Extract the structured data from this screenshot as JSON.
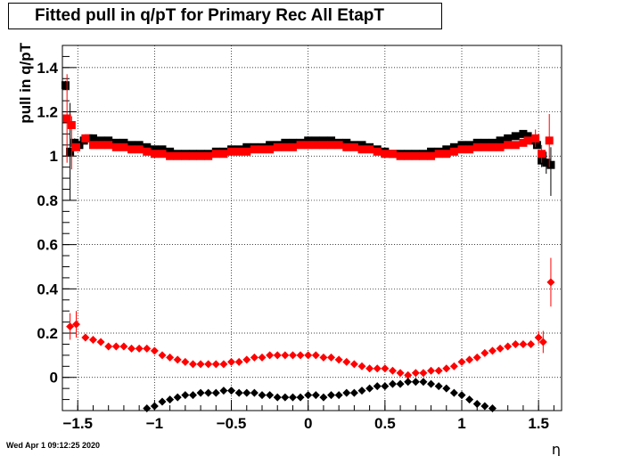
{
  "chart_data": {
    "type": "scatter",
    "title": "Fitted pull in q/pT for Primary Rec All EtapT",
    "xlabel": "η",
    "ylabel": "pull in q/pT",
    "xlim": [
      -1.6,
      1.65
    ],
    "ylim": [
      -0.15,
      1.5
    ],
    "grid": true,
    "x_ticks": [
      "−1.5",
      "−1",
      "−0.5",
      "0",
      "0.5",
      "1",
      "1.5"
    ],
    "y_ticks": [
      "0",
      "0.2",
      "0.4",
      "0.6",
      "0.8",
      "1",
      "1.2",
      "1.4"
    ],
    "x_tick_values": [
      -1.5,
      -1,
      -0.5,
      0,
      0.5,
      1,
      1.5
    ],
    "y_tick_values": [
      0,
      0.2,
      0.4,
      0.6,
      0.8,
      1,
      1.2,
      1.4
    ],
    "colors": {
      "series_a": "#000000",
      "series_b": "#ff0000"
    },
    "series": [
      {
        "marker": "square",
        "color": "#000000",
        "x": [
          -1.58,
          -1.55,
          -1.52,
          -1.49,
          -1.46,
          -1.43,
          -1.4,
          -1.35,
          -1.3,
          -1.25,
          -1.2,
          -1.15,
          -1.1,
          -1.05,
          -1.0,
          -0.95,
          -0.9,
          -0.85,
          -0.8,
          -0.75,
          -0.7,
          -0.65,
          -0.6,
          -0.55,
          -0.5,
          -0.45,
          -0.4,
          -0.35,
          -0.3,
          -0.25,
          -0.2,
          -0.15,
          -0.1,
          -0.05,
          0.0,
          0.05,
          0.1,
          0.15,
          0.2,
          0.25,
          0.3,
          0.35,
          0.4,
          0.45,
          0.5,
          0.55,
          0.6,
          0.65,
          0.7,
          0.75,
          0.8,
          0.85,
          0.9,
          0.95,
          1.0,
          1.05,
          1.1,
          1.15,
          1.2,
          1.25,
          1.3,
          1.35,
          1.4,
          1.43,
          1.46,
          1.49,
          1.52,
          1.55,
          1.58
        ],
        "y": [
          1.32,
          1.02,
          1.06,
          1.05,
          1.07,
          1.08,
          1.08,
          1.07,
          1.07,
          1.06,
          1.06,
          1.05,
          1.05,
          1.04,
          1.03,
          1.03,
          1.02,
          1.01,
          1.01,
          1.01,
          1.01,
          1.01,
          1.02,
          1.02,
          1.03,
          1.03,
          1.04,
          1.04,
          1.04,
          1.05,
          1.05,
          1.06,
          1.06,
          1.06,
          1.07,
          1.07,
          1.07,
          1.07,
          1.06,
          1.06,
          1.05,
          1.05,
          1.04,
          1.03,
          1.02,
          1.01,
          1.01,
          1.01,
          1.01,
          1.01,
          1.02,
          1.02,
          1.03,
          1.04,
          1.05,
          1.05,
          1.06,
          1.06,
          1.06,
          1.07,
          1.08,
          1.09,
          1.1,
          1.09,
          1.07,
          1.05,
          0.98,
          0.97,
          0.96
        ],
        "yerr_low": [
          0.02,
          0.22,
          0.02,
          0,
          0,
          0,
          0,
          0,
          0,
          0,
          0,
          0,
          0,
          0,
          0,
          0,
          0,
          0,
          0,
          0,
          0,
          0,
          0,
          0,
          0,
          0,
          0,
          0,
          0,
          0,
          0,
          0,
          0,
          0,
          0,
          0,
          0,
          0,
          0,
          0,
          0,
          0,
          0,
          0,
          0,
          0,
          0,
          0,
          0,
          0,
          0,
          0,
          0,
          0,
          0,
          0,
          0,
          0,
          0,
          0,
          0,
          0,
          0,
          0,
          0,
          0,
          0.03,
          0.05,
          0.14
        ],
        "yerr_high": [
          0.02,
          0.22,
          0.02,
          0,
          0,
          0,
          0,
          0,
          0,
          0,
          0,
          0,
          0,
          0,
          0,
          0,
          0,
          0,
          0,
          0,
          0,
          0,
          0,
          0,
          0,
          0,
          0,
          0,
          0,
          0,
          0,
          0,
          0,
          0,
          0,
          0,
          0,
          0,
          0,
          0,
          0,
          0,
          0,
          0,
          0,
          0,
          0,
          0,
          0,
          0,
          0,
          0,
          0,
          0,
          0,
          0,
          0,
          0,
          0,
          0,
          0,
          0,
          0,
          0,
          0,
          0,
          0.03,
          0.05,
          0.08
        ]
      },
      {
        "marker": "square",
        "color": "#ff0000",
        "x": [
          -1.57,
          -1.54,
          -1.51,
          -1.45,
          -1.4,
          -1.35,
          -1.3,
          -1.25,
          -1.2,
          -1.15,
          -1.1,
          -1.05,
          -1.0,
          -0.95,
          -0.9,
          -0.85,
          -0.8,
          -0.75,
          -0.7,
          -0.65,
          -0.6,
          -0.55,
          -0.5,
          -0.45,
          -0.4,
          -0.35,
          -0.3,
          -0.25,
          -0.2,
          -0.15,
          -0.1,
          -0.05,
          0.0,
          0.05,
          0.1,
          0.15,
          0.2,
          0.25,
          0.3,
          0.35,
          0.4,
          0.45,
          0.5,
          0.55,
          0.6,
          0.65,
          0.7,
          0.75,
          0.8,
          0.85,
          0.9,
          0.95,
          1.0,
          1.05,
          1.1,
          1.15,
          1.2,
          1.25,
          1.3,
          1.35,
          1.4,
          1.43,
          1.48,
          1.52,
          1.57
        ],
        "y": [
          1.17,
          1.14,
          1.04,
          1.08,
          1.05,
          1.05,
          1.05,
          1.04,
          1.04,
          1.03,
          1.03,
          1.02,
          1.01,
          1.01,
          1.0,
          1.0,
          1.0,
          1.0,
          1.0,
          1.0,
          1.01,
          1.01,
          1.02,
          1.02,
          1.02,
          1.03,
          1.03,
          1.03,
          1.04,
          1.04,
          1.04,
          1.05,
          1.05,
          1.05,
          1.05,
          1.05,
          1.05,
          1.04,
          1.04,
          1.03,
          1.03,
          1.02,
          1.01,
          1.01,
          1.0,
          1.0,
          1.0,
          1.0,
          1.0,
          1.01,
          1.01,
          1.02,
          1.03,
          1.03,
          1.04,
          1.04,
          1.04,
          1.04,
          1.05,
          1.05,
          1.06,
          1.07,
          1.08,
          1.01,
          1.07
        ],
        "yerr_low": [
          0.2,
          0.2,
          0,
          0,
          0,
          0,
          0,
          0,
          0,
          0,
          0,
          0,
          0,
          0,
          0,
          0,
          0,
          0,
          0,
          0,
          0,
          0,
          0,
          0,
          0,
          0,
          0,
          0,
          0,
          0,
          0,
          0,
          0,
          0,
          0,
          0,
          0,
          0,
          0,
          0,
          0,
          0,
          0,
          0,
          0,
          0,
          0,
          0,
          0,
          0,
          0,
          0,
          0,
          0,
          0,
          0,
          0,
          0,
          0,
          0,
          0,
          0,
          0.04,
          0.04,
          0.12
        ],
        "yerr_high": [
          0.2,
          0.04,
          0,
          0,
          0,
          0,
          0,
          0,
          0,
          0,
          0,
          0,
          0,
          0,
          0,
          0,
          0,
          0,
          0,
          0,
          0,
          0,
          0,
          0,
          0,
          0,
          0,
          0,
          0,
          0,
          0,
          0,
          0,
          0,
          0,
          0,
          0,
          0,
          0,
          0,
          0,
          0,
          0,
          0,
          0,
          0,
          0,
          0,
          0,
          0,
          0,
          0,
          0,
          0,
          0,
          0,
          0,
          0,
          0,
          0,
          0,
          0,
          0.04,
          0.04,
          0.12
        ]
      },
      {
        "marker": "diamond",
        "color": "#ff0000",
        "x": [
          -1.55,
          -1.51,
          -1.45,
          -1.4,
          -1.35,
          -1.3,
          -1.25,
          -1.2,
          -1.15,
          -1.1,
          -1.05,
          -1.0,
          -0.95,
          -0.9,
          -0.85,
          -0.8,
          -0.75,
          -0.7,
          -0.65,
          -0.6,
          -0.55,
          -0.5,
          -0.45,
          -0.4,
          -0.35,
          -0.3,
          -0.25,
          -0.2,
          -0.15,
          -0.1,
          -0.05,
          0.0,
          0.05,
          0.1,
          0.15,
          0.2,
          0.25,
          0.3,
          0.35,
          0.4,
          0.45,
          0.5,
          0.55,
          0.6,
          0.65,
          0.7,
          0.75,
          0.8,
          0.85,
          0.9,
          0.95,
          1.0,
          1.05,
          1.1,
          1.15,
          1.2,
          1.25,
          1.3,
          1.35,
          1.4,
          1.45,
          1.5,
          1.53,
          1.58
        ],
        "y": [
          0.23,
          0.24,
          0.18,
          0.17,
          0.16,
          0.14,
          0.14,
          0.14,
          0.13,
          0.13,
          0.13,
          0.12,
          0.1,
          0.09,
          0.08,
          0.07,
          0.06,
          0.06,
          0.06,
          0.06,
          0.06,
          0.07,
          0.07,
          0.08,
          0.09,
          0.09,
          0.1,
          0.1,
          0.1,
          0.1,
          0.1,
          0.1,
          0.1,
          0.09,
          0.09,
          0.08,
          0.07,
          0.06,
          0.05,
          0.04,
          0.04,
          0.04,
          0.03,
          0.02,
          0.01,
          0.02,
          0.02,
          0.03,
          0.03,
          0.04,
          0.05,
          0.07,
          0.08,
          0.09,
          0.11,
          0.12,
          0.13,
          0.14,
          0.15,
          0.15,
          0.15,
          0.18,
          0.16,
          0.43
        ],
        "yerr_low": [
          0.06,
          0.06,
          0,
          0,
          0,
          0,
          0,
          0,
          0,
          0,
          0,
          0,
          0,
          0,
          0,
          0,
          0,
          0,
          0,
          0,
          0,
          0,
          0,
          0,
          0,
          0,
          0,
          0,
          0,
          0,
          0,
          0,
          0,
          0,
          0,
          0,
          0,
          0,
          0,
          0,
          0,
          0,
          0,
          0,
          0,
          0,
          0,
          0,
          0,
          0,
          0,
          0,
          0,
          0,
          0,
          0,
          0,
          0,
          0,
          0,
          0,
          0.03,
          0.05,
          0.11
        ],
        "yerr_high": [
          0.06,
          0.06,
          0,
          0,
          0,
          0,
          0,
          0,
          0,
          0,
          0,
          0,
          0,
          0,
          0,
          0,
          0,
          0,
          0,
          0,
          0,
          0,
          0,
          0,
          0,
          0,
          0,
          0,
          0,
          0,
          0,
          0,
          0,
          0,
          0,
          0,
          0,
          0,
          0,
          0,
          0,
          0,
          0,
          0,
          0,
          0,
          0,
          0,
          0,
          0,
          0,
          0,
          0,
          0,
          0,
          0,
          0,
          0,
          0,
          0,
          0,
          0.03,
          0.05,
          0.11
        ]
      },
      {
        "marker": "diamond",
        "color": "#000000",
        "x": [
          -1.05,
          -1.0,
          -0.95,
          -0.9,
          -0.85,
          -0.8,
          -0.75,
          -0.7,
          -0.65,
          -0.6,
          -0.55,
          -0.5,
          -0.45,
          -0.4,
          -0.35,
          -0.3,
          -0.25,
          -0.2,
          -0.15,
          -0.1,
          -0.05,
          0.0,
          0.05,
          0.1,
          0.15,
          0.2,
          0.25,
          0.3,
          0.35,
          0.4,
          0.45,
          0.5,
          0.55,
          0.6,
          0.65,
          0.7,
          0.75,
          0.8,
          0.85,
          0.9,
          0.95,
          1.0,
          1.05,
          1.1,
          1.15,
          1.2
        ],
        "y": [
          -0.14,
          -0.13,
          -0.11,
          -0.1,
          -0.09,
          -0.08,
          -0.08,
          -0.07,
          -0.07,
          -0.07,
          -0.06,
          -0.06,
          -0.07,
          -0.07,
          -0.07,
          -0.08,
          -0.08,
          -0.09,
          -0.09,
          -0.09,
          -0.09,
          -0.08,
          -0.08,
          -0.09,
          -0.08,
          -0.08,
          -0.07,
          -0.07,
          -0.06,
          -0.05,
          -0.04,
          -0.04,
          -0.03,
          -0.03,
          -0.02,
          -0.02,
          -0.02,
          -0.03,
          -0.04,
          -0.05,
          -0.07,
          -0.08,
          -0.1,
          -0.12,
          -0.13,
          -0.14
        ]
      }
    ]
  },
  "footer": {
    "timestamp": "Wed Apr  1 09:12:25 2020"
  }
}
